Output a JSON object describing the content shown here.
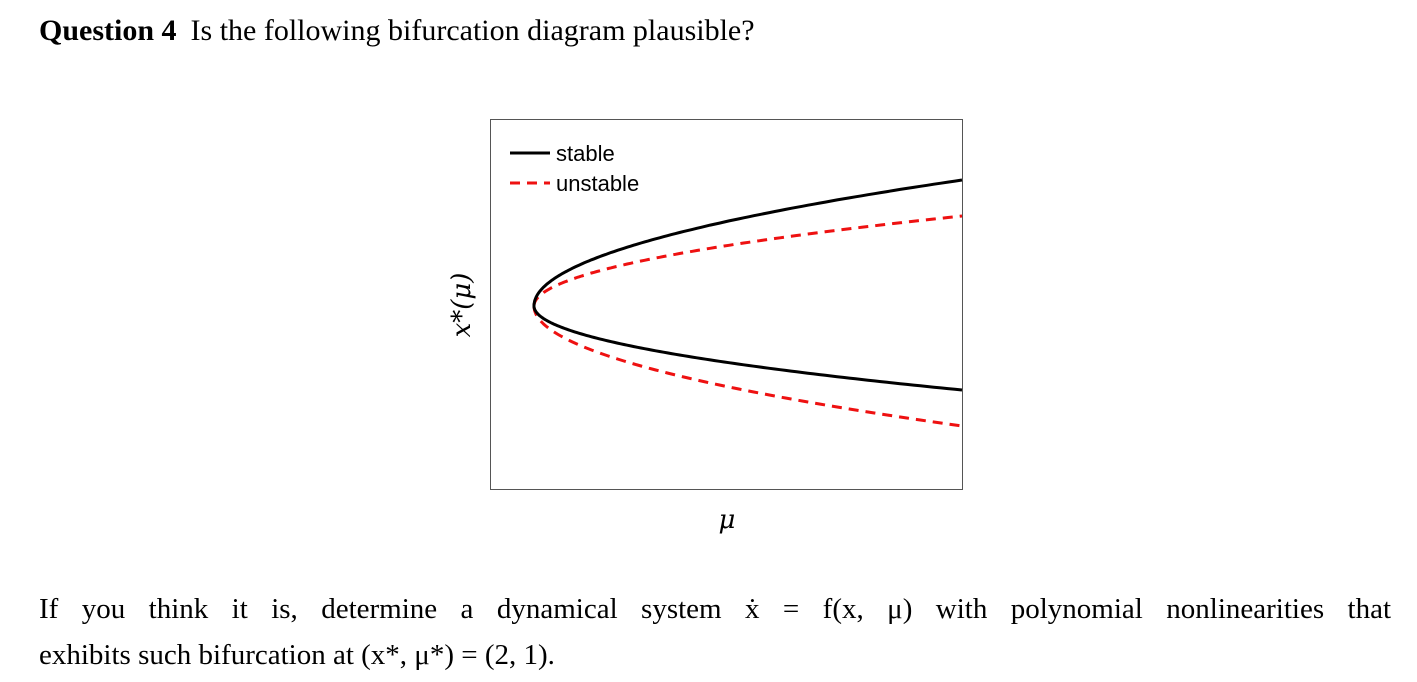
{
  "question": {
    "label": "Question 4",
    "text": "Is the following bifurcation diagram plausible?"
  },
  "chart_data": {
    "type": "line",
    "xlabel": "μ",
    "ylabel": "x*(μ)",
    "grid": false,
    "legend_position": "top-left",
    "xticks": [],
    "yticks": [],
    "series": [
      {
        "name": "stable",
        "style": "solid",
        "color": "#000000",
        "shape": "parabola opening right: x* = x0 ± 0.7·sqrt(μ − μ0)"
      },
      {
        "name": "unstable",
        "style": "dashed",
        "color": "#ee1111",
        "shape": "parabola opening right: x* = x0 ± 0.5·sqrt(μ − μ0) (upper), x0 − 0.68·sqrt(μ − μ0) (lower)"
      }
    ],
    "curves": {
      "mu_min": 0,
      "mu_max": 1,
      "stable_upper": 0.42,
      "stable_lower": 0.28,
      "unstable_upper": 0.3,
      "unstable_lower": 0.4
    }
  },
  "body": {
    "line1_parts": [
      "If",
      "you",
      "think",
      "it",
      "is,",
      "determine",
      "a",
      "dynamical",
      "system",
      "ẋ",
      "=",
      "f(x, μ)",
      "with",
      "polynomial",
      "nonlinearities",
      "that"
    ],
    "line2": "exhibits such bifurcation at (x*, μ*) = (2, 1)."
  }
}
